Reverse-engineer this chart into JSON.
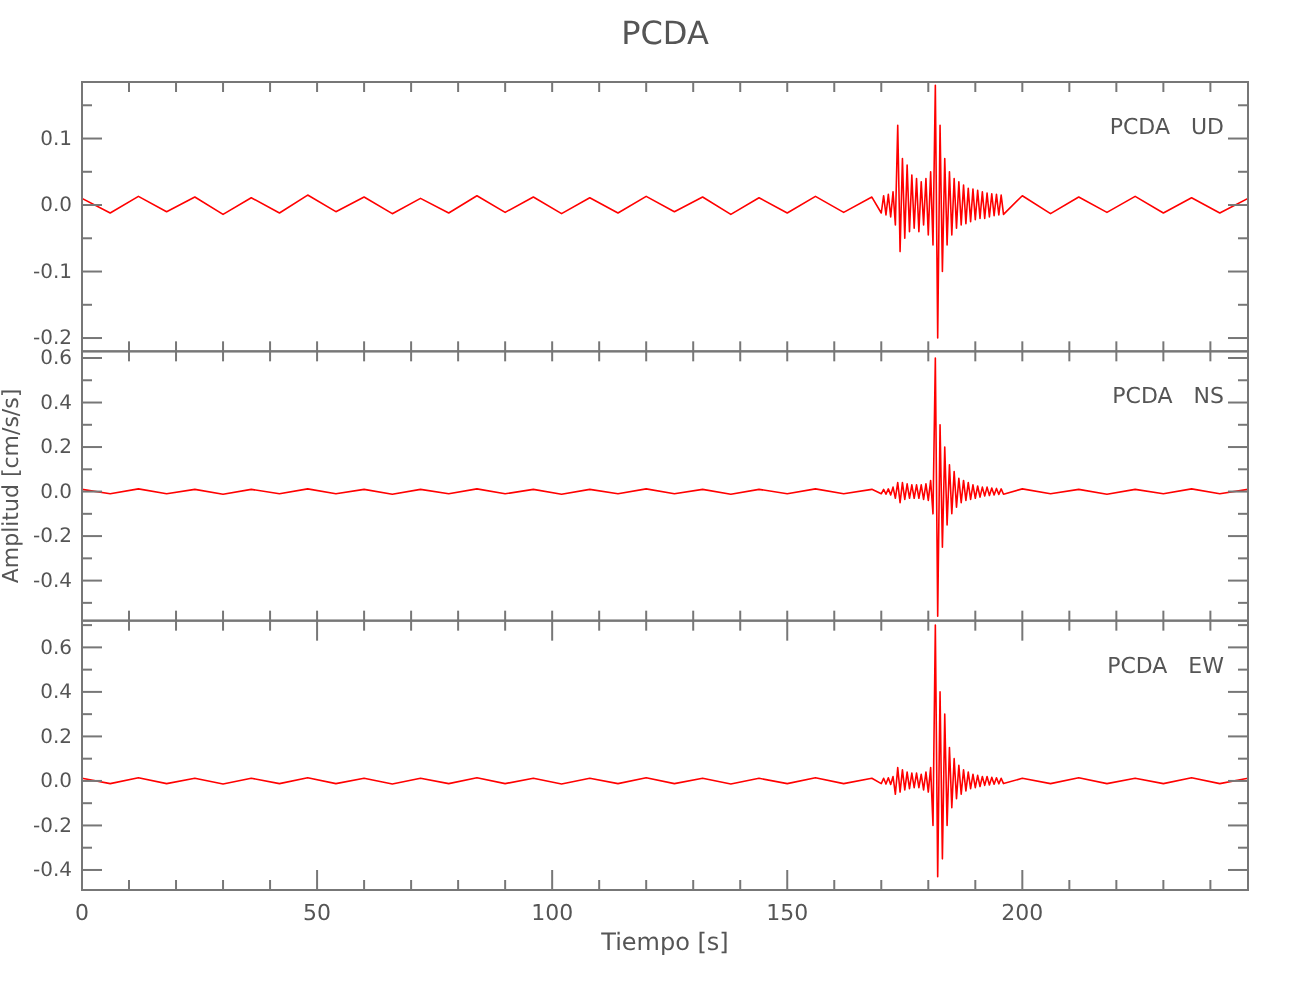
{
  "chart_data": [
    {
      "type": "line",
      "title": "PCDA",
      "annotations": [
        "PCDA   UD"
      ],
      "tick_labels": "y",
      "x": [
        0,
        6,
        12,
        18,
        24,
        30,
        36,
        42,
        48,
        54,
        60,
        66,
        72,
        78,
        84,
        90,
        96,
        102,
        108,
        114,
        120,
        126,
        132,
        138,
        144,
        150,
        156,
        162,
        168,
        170,
        170.5,
        171,
        171.5,
        172,
        172.5,
        173,
        173.5,
        174,
        174.5,
        175,
        175.5,
        176,
        176.5,
        177,
        177.5,
        178,
        178.5,
        179,
        179.5,
        180,
        180.5,
        181,
        181.5,
        182,
        182.5,
        183,
        183.5,
        184,
        184.5,
        185,
        185.5,
        186,
        186.5,
        187,
        187.5,
        188,
        188.5,
        189,
        189.5,
        190,
        190.5,
        191,
        191.5,
        192,
        192.5,
        193,
        193.5,
        194,
        194.5,
        195,
        195.5,
        196,
        200,
        206,
        212,
        218,
        224,
        230,
        236,
        242,
        248
      ],
      "series": [
        {
          "color": "#ff0000",
          "values": [
            0.01,
            -0.012,
            0.013,
            -0.01,
            0.012,
            -0.014,
            0.011,
            -0.012,
            0.015,
            -0.01,
            0.012,
            -0.013,
            0.01,
            -0.012,
            0.014,
            -0.011,
            0.012,
            -0.013,
            0.011,
            -0.012,
            0.013,
            -0.01,
            0.012,
            -0.014,
            0.011,
            -0.012,
            0.013,
            -0.011,
            0.012,
            -0.012,
            0.014,
            -0.015,
            0.016,
            -0.018,
            0.02,
            -0.03,
            0.12,
            -0.07,
            0.07,
            -0.05,
            0.06,
            -0.04,
            0.045,
            -0.035,
            0.04,
            -0.04,
            0.035,
            -0.03,
            0.04,
            -0.045,
            0.05,
            -0.06,
            0.18,
            -0.2,
            0.12,
            -0.1,
            0.07,
            -0.06,
            0.05,
            -0.045,
            0.04,
            -0.035,
            0.035,
            -0.03,
            0.03,
            -0.028,
            0.025,
            -0.025,
            0.024,
            -0.022,
            0.022,
            -0.02,
            0.02,
            -0.02,
            0.018,
            -0.018,
            0.017,
            -0.016,
            0.016,
            -0.015,
            0.015,
            -0.014,
            0.014,
            -0.013,
            0.012,
            -0.011,
            0.013,
            -0.012,
            0.011,
            -0.012,
            0.01
          ]
        }
      ],
      "xlim": [
        0,
        248
      ],
      "xticks": [
        {
          "value": 0,
          "label": null
        },
        {
          "value": 10,
          "label": null
        },
        {
          "value": 20,
          "label": null
        },
        {
          "value": 30,
          "label": null
        },
        {
          "value": 40,
          "label": null
        },
        {
          "value": 50,
          "label": null
        },
        {
          "value": 60,
          "label": null
        },
        {
          "value": 70,
          "label": null
        },
        {
          "value": 80,
          "label": null
        },
        {
          "value": 90,
          "label": null
        },
        {
          "value": 100,
          "label": null
        },
        {
          "value": 110,
          "label": null
        },
        {
          "value": 120,
          "label": null
        },
        {
          "value": 130,
          "label": null
        },
        {
          "value": 140,
          "label": null
        },
        {
          "value": 150,
          "label": null
        },
        {
          "value": 160,
          "label": null
        },
        {
          "value": 170,
          "label": null
        },
        {
          "value": 180,
          "label": null
        },
        {
          "value": 190,
          "label": null
        },
        {
          "value": 200,
          "label": null
        },
        {
          "value": 210,
          "label": null
        },
        {
          "value": 220,
          "label": null
        },
        {
          "value": 230,
          "label": null
        },
        {
          "value": 240,
          "label": null
        }
      ],
      "ylim": [
        -0.22,
        0.185
      ],
      "yticks": [
        {
          "value": -0.2,
          "label": "-0.2"
        },
        {
          "value": -0.15,
          "label": null
        },
        {
          "value": -0.1,
          "label": "-0.1"
        },
        {
          "value": -0.05,
          "label": null
        },
        {
          "value": 0,
          "label": "0.0"
        },
        {
          "value": 0.05,
          "label": null
        },
        {
          "value": 0.1,
          "label": "0.1"
        },
        {
          "value": 0.15,
          "label": null
        }
      ]
    },
    {
      "type": "line",
      "ylabel": "Amplitud [cm/s/s]",
      "annotations": [
        "PCDA   NS"
      ],
      "tick_labels": "y",
      "x": [
        0,
        6,
        12,
        18,
        24,
        30,
        36,
        42,
        48,
        54,
        60,
        66,
        72,
        78,
        84,
        90,
        96,
        102,
        108,
        114,
        120,
        126,
        132,
        138,
        144,
        150,
        156,
        162,
        168,
        170,
        170.5,
        171,
        171.5,
        172,
        172.5,
        173,
        173.5,
        174,
        174.5,
        175,
        175.5,
        176,
        176.5,
        177,
        177.5,
        178,
        178.5,
        179,
        179.5,
        180,
        180.5,
        181,
        181.5,
        182,
        182.5,
        183,
        183.5,
        184,
        184.5,
        185,
        185.5,
        186,
        186.5,
        187,
        187.5,
        188,
        188.5,
        189,
        189.5,
        190,
        190.5,
        191,
        191.5,
        192,
        192.5,
        193,
        193.5,
        194,
        194.5,
        195,
        195.5,
        196,
        200,
        206,
        212,
        218,
        224,
        230,
        236,
        242,
        248
      ],
      "series": [
        {
          "color": "#ff0000",
          "values": [
            0.01,
            -0.01,
            0.012,
            -0.01,
            0.01,
            -0.012,
            0.01,
            -0.01,
            0.012,
            -0.01,
            0.01,
            -0.012,
            0.01,
            -0.01,
            0.012,
            -0.01,
            0.01,
            -0.012,
            0.01,
            -0.01,
            0.012,
            -0.01,
            0.01,
            -0.012,
            0.01,
            -0.01,
            0.012,
            -0.01,
            0.01,
            -0.01,
            0.01,
            -0.012,
            0.012,
            -0.015,
            0.02,
            -0.03,
            0.04,
            -0.05,
            0.04,
            -0.035,
            0.035,
            -0.03,
            0.03,
            -0.03,
            0.03,
            -0.03,
            0.03,
            -0.035,
            0.035,
            -0.04,
            0.05,
            -0.1,
            0.6,
            -0.56,
            0.3,
            -0.25,
            0.2,
            -0.15,
            0.12,
            -0.1,
            0.09,
            -0.07,
            0.06,
            -0.05,
            0.05,
            -0.04,
            0.04,
            -0.035,
            0.03,
            -0.03,
            0.025,
            -0.025,
            0.02,
            -0.02,
            0.02,
            -0.018,
            0.016,
            -0.015,
            0.014,
            -0.013,
            0.012,
            -0.012,
            0.012,
            -0.01,
            0.01,
            -0.012,
            0.01,
            -0.01,
            0.012,
            -0.01,
            0.01
          ]
        }
      ],
      "xlim": [
        0,
        248
      ],
      "xticks": [
        {
          "value": 0,
          "label": null
        },
        {
          "value": 10,
          "label": null
        },
        {
          "value": 20,
          "label": null
        },
        {
          "value": 30,
          "label": null
        },
        {
          "value": 40,
          "label": null
        },
        {
          "value": 50,
          "label": null
        },
        {
          "value": 60,
          "label": null
        },
        {
          "value": 70,
          "label": null
        },
        {
          "value": 80,
          "label": null
        },
        {
          "value": 90,
          "label": null
        },
        {
          "value": 100,
          "label": null
        },
        {
          "value": 110,
          "label": null
        },
        {
          "value": 120,
          "label": null
        },
        {
          "value": 130,
          "label": null
        },
        {
          "value": 140,
          "label": null
        },
        {
          "value": 150,
          "label": null
        },
        {
          "value": 160,
          "label": null
        },
        {
          "value": 170,
          "label": null
        },
        {
          "value": 180,
          "label": null
        },
        {
          "value": 190,
          "label": null
        },
        {
          "value": 200,
          "label": null
        },
        {
          "value": 210,
          "label": null
        },
        {
          "value": 220,
          "label": null
        },
        {
          "value": 230,
          "label": null
        },
        {
          "value": 240,
          "label": null
        }
      ],
      "ylim": [
        -0.58,
        0.63
      ],
      "yticks": [
        {
          "value": -0.5,
          "label": null
        },
        {
          "value": -0.4,
          "label": "-0.4"
        },
        {
          "value": -0.3,
          "label": null
        },
        {
          "value": -0.2,
          "label": "-0.2"
        },
        {
          "value": -0.1,
          "label": null
        },
        {
          "value": 0,
          "label": "0.0"
        },
        {
          "value": 0.1,
          "label": null
        },
        {
          "value": 0.2,
          "label": "0.2"
        },
        {
          "value": 0.3,
          "label": null
        },
        {
          "value": 0.4,
          "label": "0.4"
        },
        {
          "value": 0.5,
          "label": null
        },
        {
          "value": 0.6,
          "label": "0.6"
        }
      ]
    },
    {
      "type": "line",
      "xlabel": "Tiempo [s]",
      "annotations": [
        "PCDA   EW"
      ],
      "x": [
        0,
        6,
        12,
        18,
        24,
        30,
        36,
        42,
        48,
        54,
        60,
        66,
        72,
        78,
        84,
        90,
        96,
        102,
        108,
        114,
        120,
        126,
        132,
        138,
        144,
        150,
        156,
        162,
        168,
        170,
        170.5,
        171,
        171.5,
        172,
        172.5,
        173,
        173.5,
        174,
        174.5,
        175,
        175.5,
        176,
        176.5,
        177,
        177.5,
        178,
        178.5,
        179,
        179.5,
        180,
        180.5,
        181,
        181.5,
        182,
        182.5,
        183,
        183.5,
        184,
        184.5,
        185,
        185.5,
        186,
        186.5,
        187,
        187.5,
        188,
        188.5,
        189,
        189.5,
        190,
        190.5,
        191,
        191.5,
        192,
        192.5,
        193,
        193.5,
        194,
        194.5,
        195,
        195.5,
        196,
        200,
        206,
        212,
        218,
        224,
        230,
        236,
        242,
        248
      ],
      "series": [
        {
          "color": "#ff0000",
          "values": [
            0.012,
            -0.012,
            0.014,
            -0.012,
            0.012,
            -0.014,
            0.012,
            -0.012,
            0.014,
            -0.012,
            0.012,
            -0.014,
            0.012,
            -0.012,
            0.014,
            -0.012,
            0.012,
            -0.014,
            0.012,
            -0.012,
            0.014,
            -0.012,
            0.012,
            -0.014,
            0.012,
            -0.012,
            0.014,
            -0.012,
            0.012,
            -0.012,
            0.012,
            -0.014,
            0.014,
            -0.016,
            0.02,
            -0.06,
            0.06,
            -0.05,
            0.05,
            -0.04,
            0.04,
            -0.035,
            0.035,
            -0.03,
            0.035,
            -0.03,
            0.03,
            -0.04,
            0.04,
            -0.05,
            0.06,
            -0.2,
            0.7,
            -0.43,
            0.4,
            -0.35,
            0.3,
            -0.2,
            0.15,
            -0.12,
            0.1,
            -0.08,
            0.07,
            -0.06,
            0.05,
            -0.045,
            0.04,
            -0.035,
            0.03,
            -0.03,
            0.025,
            -0.025,
            0.02,
            -0.02,
            0.02,
            -0.018,
            0.016,
            -0.015,
            0.014,
            -0.013,
            0.012,
            -0.012,
            0.012,
            -0.012,
            0.014,
            -0.012,
            0.012,
            -0.012,
            0.014,
            -0.012,
            0.012
          ]
        }
      ],
      "xlim": [
        0,
        248
      ],
      "xticks": [
        0,
        {
          "value": 10,
          "label": null
        },
        {
          "value": 20,
          "label": null
        },
        {
          "value": 30,
          "label": null
        },
        {
          "value": 40,
          "label": null
        },
        50,
        {
          "value": 60,
          "label": null
        },
        {
          "value": 70,
          "label": null
        },
        {
          "value": 80,
          "label": null
        },
        {
          "value": 90,
          "label": null
        },
        100,
        {
          "value": 110,
          "label": null
        },
        {
          "value": 120,
          "label": null
        },
        {
          "value": 130,
          "label": null
        },
        {
          "value": 140,
          "label": null
        },
        150,
        {
          "value": 160,
          "label": null
        },
        {
          "value": 170,
          "label": null
        },
        {
          "value": 180,
          "label": null
        },
        {
          "value": 190,
          "label": null
        },
        200,
        {
          "value": 210,
          "label": null
        },
        {
          "value": 220,
          "label": null
        },
        {
          "value": 230,
          "label": null
        },
        {
          "value": 240,
          "label": null
        }
      ],
      "ylim": [
        -0.49,
        0.72
      ],
      "yticks": [
        {
          "value": -0.4,
          "label": "-0.4"
        },
        {
          "value": -0.3,
          "label": null
        },
        {
          "value": -0.2,
          "label": "-0.2"
        },
        {
          "value": -0.1,
          "label": null
        },
        {
          "value": 0,
          "label": "0.0"
        },
        {
          "value": 0.1,
          "label": null
        },
        {
          "value": 0.2,
          "label": "0.2"
        },
        {
          "value": 0.3,
          "label": null
        },
        {
          "value": 0.4,
          "label": "0.4"
        },
        {
          "value": 0.5,
          "label": null
        },
        {
          "value": 0.6,
          "label": "0.6"
        },
        {
          "value": 0.7,
          "label": null
        }
      ]
    }
  ]
}
